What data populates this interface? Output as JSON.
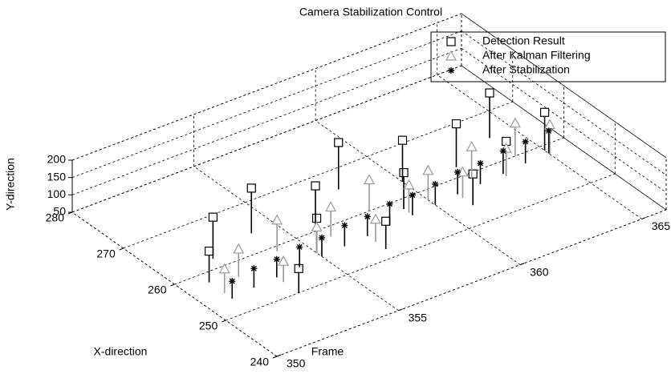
{
  "chart_data": {
    "type": "scatter3d",
    "title": "Camera Stabilization Control",
    "xlabel": "Frame",
    "ylabel": "X-direction",
    "zlabel": "Y-direction",
    "xlim": [
      350,
      366
    ],
    "xticks": [
      350,
      355,
      360,
      365
    ],
    "ylim": [
      240,
      280
    ],
    "yticks": [
      240,
      250,
      260,
      270,
      280
    ],
    "zlim": [
      50,
      200
    ],
    "zticks": [
      50,
      100,
      150,
      200
    ],
    "grid": true,
    "legend": "upper right",
    "series": [
      {
        "name": "Detection Result",
        "marker": "square",
        "color": "#000000",
        "x": [
          351,
          352,
          353,
          354,
          355,
          356,
          357,
          358,
          359,
          360,
          361,
          362,
          363,
          364,
          365
        ],
        "y": [
          258,
          262,
          250,
          264,
          256,
          261,
          252,
          266,
          258,
          263,
          254,
          262,
          257,
          265,
          259
        ],
        "z": [
          140,
          170,
          120,
          180,
          150,
          165,
          130,
          185,
          155,
          170,
          140,
          175,
          150,
          180,
          160
        ]
      },
      {
        "name": "After Kalman Filtering",
        "marker": "triangle",
        "color": "#999999",
        "x": [
          351,
          352,
          353,
          354,
          355,
          356,
          357,
          358,
          359,
          360,
          361,
          362,
          363,
          364,
          365
        ],
        "y": [
          255,
          257,
          253,
          259,
          256,
          258,
          254,
          260,
          257,
          258,
          256,
          259,
          257,
          260,
          258
        ],
        "z": [
          120,
          130,
          110,
          140,
          125,
          135,
          115,
          140,
          130,
          135,
          125,
          140,
          130,
          145,
          135
        ]
      },
      {
        "name": "After Stabilization",
        "marker": "star",
        "color": "#000000",
        "x": [
          351,
          352,
          353,
          354,
          355,
          356,
          357,
          358,
          359,
          360,
          361,
          362,
          363,
          364,
          365
        ],
        "y": [
          253.5,
          254,
          254.3,
          254.6,
          255,
          255.3,
          255.6,
          256,
          256.3,
          256.6,
          257,
          257.3,
          257.6,
          258,
          258.2
        ],
        "z": [
          100,
          105,
          102,
          108,
          104,
          110,
          106,
          112,
          108,
          110,
          114,
          110,
          116,
          112,
          115
        ]
      }
    ]
  }
}
